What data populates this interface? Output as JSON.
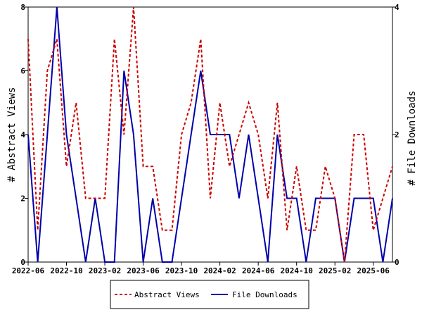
{
  "chart_data": {
    "type": "line",
    "x_ticks": [
      "2022-06",
      "2022-10",
      "2023-02",
      "2023-06",
      "2023-10",
      "2024-02",
      "2024-06",
      "2024-10",
      "2025-02",
      "2025-06"
    ],
    "x_range": [
      "2022-06",
      "2025-08"
    ],
    "y_left": {
      "label": "# Abstract Views",
      "range": [
        0,
        8
      ],
      "ticks": [
        "0",
        "2",
        "4",
        "6",
        "8"
      ]
    },
    "y_right": {
      "label": "# File Downloads",
      "range": [
        0,
        4
      ],
      "ticks": [
        "0",
        "2",
        "4"
      ]
    },
    "grid": false,
    "legend_position": "bottom",
    "series": [
      {
        "name": "Abstract Views",
        "axis": "left",
        "color": "#cc0000",
        "style": "dashed",
        "x": [
          "2022-06",
          "2022-07",
          "2022-08",
          "2022-09",
          "2022-10",
          "2022-11",
          "2022-12",
          "2023-01",
          "2023-02",
          "2023-03",
          "2023-04",
          "2023-05",
          "2023-06",
          "2023-07",
          "2023-08",
          "2023-09",
          "2023-10",
          "2023-11",
          "2023-12",
          "2024-01",
          "2024-02",
          "2024-03",
          "2024-04",
          "2024-05",
          "2024-06",
          "2024-07",
          "2024-08",
          "2024-09",
          "2024-10",
          "2024-11",
          "2024-12",
          "2025-01",
          "2025-02",
          "2025-03",
          "2025-04",
          "2025-05",
          "2025-06",
          "2025-07",
          "2025-08"
        ],
        "values": [
          7,
          1,
          6,
          7,
          3,
          5,
          2,
          2,
          2,
          7,
          4,
          8,
          3,
          3,
          1,
          1,
          4,
          5,
          7,
          2,
          5,
          3,
          4,
          5,
          4,
          2,
          5,
          1,
          3,
          1,
          1,
          3,
          2,
          0,
          4,
          4,
          1,
          2,
          3
        ]
      },
      {
        "name": "File Downloads",
        "axis": "right",
        "color": "#0000aa",
        "style": "solid",
        "x": [
          "2022-06",
          "2022-07",
          "2022-08",
          "2022-09",
          "2022-10",
          "2022-11",
          "2022-12",
          "2023-01",
          "2023-02",
          "2023-03",
          "2023-04",
          "2023-05",
          "2023-06",
          "2023-07",
          "2023-08",
          "2023-09",
          "2023-10",
          "2023-11",
          "2023-12",
          "2024-01",
          "2024-02",
          "2024-03",
          "2024-04",
          "2024-05",
          "2024-06",
          "2024-07",
          "2024-08",
          "2024-09",
          "2024-10",
          "2024-11",
          "2024-12",
          "2025-01",
          "2025-02",
          "2025-03",
          "2025-04",
          "2025-05",
          "2025-06",
          "2025-07",
          "2025-08"
        ],
        "values": [
          2,
          0,
          2,
          4,
          2,
          1,
          0,
          1,
          0,
          0,
          3,
          2,
          0,
          1,
          0,
          0,
          1,
          2,
          3,
          2,
          2,
          2,
          1,
          2,
          1,
          0,
          2,
          1,
          1,
          0,
          1,
          1,
          1,
          0,
          1,
          1,
          1,
          0,
          1
        ]
      }
    ]
  }
}
